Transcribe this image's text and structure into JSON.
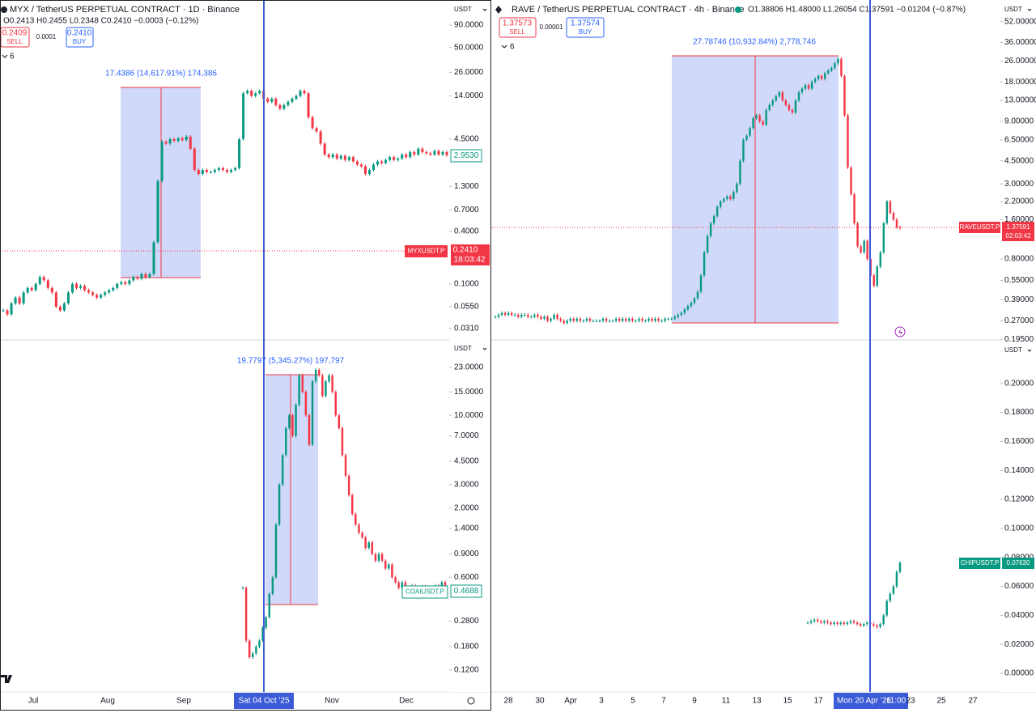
{
  "panes": [
    {
      "header": {
        "title": "MYX / TetherUS PERPETUAL CONTRACT · 1D · Binance",
        "ohlc": "O0.2413 H0.2455 L0.2348 C0.2410 −0.0003 (−0.12%)",
        "sell_price": "0.2409",
        "sell": "SELL",
        "spread": "0.0001",
        "buy_price": "0.2410",
        "buy": "BUY",
        "indicators": "6"
      },
      "currency": "USDT",
      "log": true,
      "ylim": [
        0.023,
        174
      ],
      "yticks": [
        {
          "value": 90,
          "label": "90.0000"
        },
        {
          "value": 50,
          "label": "50.0000"
        },
        {
          "value": 26,
          "label": "26.0000"
        },
        {
          "value": 14,
          "label": "14.0000"
        },
        {
          "value": 4.5,
          "label": "4.5000"
        },
        {
          "value": 1.3,
          "label": "1.3000"
        },
        {
          "value": 0.7,
          "label": "0.7000"
        },
        {
          "value": 0.4,
          "label": "0.4000"
        },
        {
          "value": 0.1,
          "label": "0.1000"
        },
        {
          "value": 0.055,
          "label": "0.0550"
        },
        {
          "value": 0.031,
          "label": "0.0310"
        }
      ],
      "measure": "17.4386 (14,617.91%) 174,386",
      "compare_price": "2.9530",
      "symbol_tag": "MYXUSDT.P",
      "tag_price": "0.2410",
      "countdown": "18:03:42",
      "closes": [
        0.05,
        0.045,
        0.06,
        0.07,
        0.06,
        0.08,
        0.09,
        0.085,
        0.1,
        0.12,
        0.11,
        0.09,
        0.08,
        0.055,
        0.05,
        0.06,
        0.08,
        0.1,
        0.09,
        0.095,
        0.085,
        0.08,
        0.075,
        0.07,
        0.075,
        0.08,
        0.085,
        0.09,
        0.1,
        0.105,
        0.1,
        0.11,
        0.12,
        0.115,
        0.13,
        0.12,
        0.13,
        0.3,
        1.5,
        4.2,
        4.0,
        4.5,
        4.3,
        4.6,
        4.4,
        4.8,
        3.5,
        2.0,
        1.8,
        2.0,
        1.9,
        1.9,
        2.0,
        2.1,
        2.0,
        1.9,
        2.0,
        2.1,
        4.5,
        15,
        16,
        14,
        15,
        16,
        13,
        12,
        13,
        11,
        10,
        11,
        12,
        13,
        14,
        16,
        15,
        8,
        6,
        5.5,
        4,
        3,
        2.8,
        3.0,
        2.7,
        2.9,
        2.6,
        2.8,
        2.5,
        2.3,
        2.2,
        1.8,
        2.0,
        2.3,
        2.5,
        2.4,
        2.6,
        2.8,
        2.6,
        2.7,
        3.0,
        2.8,
        3.2,
        3.0,
        3.5,
        3.2,
        3.1,
        3.0,
        3.3,
        3.0,
        3.2,
        2.95
      ]
    },
    {
      "currency": "USDT",
      "log": true,
      "ylim": [
        0.082,
        37
      ],
      "yticks": [
        {
          "value": 23,
          "label": "23.0000"
        },
        {
          "value": 15,
          "label": "15.0000"
        },
        {
          "value": 10,
          "label": "10.0000"
        },
        {
          "value": 7,
          "label": "7.0000"
        },
        {
          "value": 4.5,
          "label": "4.5000"
        },
        {
          "value": 3,
          "label": "3.0000"
        },
        {
          "value": 2,
          "label": "2.0000"
        },
        {
          "value": 1.4,
          "label": "1.4000"
        },
        {
          "value": 0.9,
          "label": "0.9000"
        },
        {
          "value": 0.6,
          "label": "0.6000"
        },
        {
          "value": 0.28,
          "label": "0.2800"
        },
        {
          "value": 0.18,
          "label": "0.1800"
        },
        {
          "value": 0.12,
          "label": "0.1200"
        }
      ],
      "measure": "19.7797 (5,345.27%) 197,797",
      "symbol_tag": "COAIUSDT.P",
      "tag_price": "0.4688",
      "closes": [
        0.5,
        0.2,
        0.15,
        0.16,
        0.18,
        0.2,
        0.25,
        0.3,
        0.45,
        0.6,
        1.5,
        3.0,
        5,
        8,
        10,
        7,
        12,
        20,
        15,
        10,
        6,
        18,
        22,
        20,
        14,
        18,
        20,
        15,
        10,
        8,
        5,
        3.5,
        2.5,
        1.8,
        1.5,
        1.3,
        1.2,
        1.0,
        1.1,
        0.9,
        0.8,
        0.9,
        0.8,
        0.7,
        0.75,
        0.6,
        0.55,
        0.5,
        0.55,
        0.5,
        0.48,
        0.52,
        0.5,
        0.5,
        0.51,
        0.5,
        0.49,
        0.5,
        0.52,
        0.5,
        0.55,
        0.47
      ]
    },
    {
      "header": {
        "title": "RAVE / TetherUS PERPETUAL CONTRACT · 4h · Binance",
        "ohlc": "O1.38806 H1.48000 L1.26054 C1.37591 −0.01204 (−0.87%)",
        "sell_price": "1.37573",
        "sell": "SELL",
        "spread": "0.00001",
        "buy_price": "1.37574",
        "buy": "BUY",
        "indicators": "6"
      },
      "currency": "USDT",
      "log": true,
      "ylim": [
        0.193,
        76
      ],
      "yticks": [
        {
          "value": 52,
          "label": "52.00000"
        },
        {
          "value": 36,
          "label": "36.00000"
        },
        {
          "value": 26,
          "label": "26.00000"
        },
        {
          "value": 18,
          "label": "18.00000"
        },
        {
          "value": 13,
          "label": "13.00000"
        },
        {
          "value": 9,
          "label": "9.00000"
        },
        {
          "value": 6.5,
          "label": "6.50000"
        },
        {
          "value": 4.5,
          "label": "4.50000"
        },
        {
          "value": 3,
          "label": "3.00000"
        },
        {
          "value": 2.2,
          "label": "2.20000"
        },
        {
          "value": 1.6,
          "label": "1.60000"
        },
        {
          "value": 0.8,
          "label": "0.80000"
        },
        {
          "value": 0.55,
          "label": "0.55000"
        },
        {
          "value": 0.39,
          "label": "0.39000"
        },
        {
          "value": 0.27,
          "label": "0.27000"
        },
        {
          "value": 0.195,
          "label": "0.19500"
        }
      ],
      "measure": "27.78746 (10,932.84%) 2,778,746",
      "symbol_tag": "RAVEUSDT.P",
      "tag_price": "1.37591",
      "countdown": "02:03:42",
      "closes": [
        0.29,
        0.3,
        0.31,
        0.3,
        0.31,
        0.3,
        0.3,
        0.29,
        0.3,
        0.3,
        0.29,
        0.29,
        0.3,
        0.29,
        0.28,
        0.29,
        0.27,
        0.28,
        0.3,
        0.28,
        0.27,
        0.26,
        0.27,
        0.28,
        0.27,
        0.28,
        0.27,
        0.27,
        0.28,
        0.27,
        0.27,
        0.27,
        0.27,
        0.28,
        0.27,
        0.27,
        0.27,
        0.28,
        0.27,
        0.28,
        0.27,
        0.28,
        0.27,
        0.27,
        0.28,
        0.27,
        0.27,
        0.28,
        0.27,
        0.28,
        0.27,
        0.27,
        0.28,
        0.28,
        0.28,
        0.29,
        0.3,
        0.31,
        0.33,
        0.35,
        0.37,
        0.4,
        0.45,
        0.6,
        0.9,
        1.2,
        1.5,
        1.7,
        2.0,
        2.2,
        2.3,
        2.4,
        2.3,
        2.6,
        3.0,
        4.5,
        6.5,
        7.0,
        8.0,
        9.5,
        10,
        9,
        8.5,
        11,
        12,
        13,
        14,
        15,
        13,
        12,
        11,
        10.5,
        13,
        15,
        16,
        17,
        16,
        18,
        19,
        20,
        19,
        21,
        22,
        23,
        25,
        27,
        20,
        10,
        4,
        2.5,
        1.5,
        1.0,
        0.9,
        1.1,
        0.8,
        0.6,
        0.5,
        0.7,
        0.9,
        1.5,
        2.2,
        1.8,
        1.6,
        1.4,
        1.376
      ]
    },
    {
      "currency": "USDT",
      "log": false,
      "ylim": [
        -0.0128,
        0.23
      ],
      "yticks": [
        {
          "value": 0.2,
          "label": "0.20000"
        },
        {
          "value": 0.18,
          "label": "0.18000"
        },
        {
          "value": 0.16,
          "label": "0.16000"
        },
        {
          "value": 0.14,
          "label": "0.14000"
        },
        {
          "value": 0.12,
          "label": "0.12000"
        },
        {
          "value": 0.1,
          "label": "0.10000"
        },
        {
          "value": 0.08,
          "label": "0.08000"
        },
        {
          "value": 0.06,
          "label": "0.06000"
        },
        {
          "value": 0.04,
          "label": "0.04000"
        },
        {
          "value": 0.02,
          "label": "0.02000"
        },
        {
          "value": 0,
          "label": "0.00000"
        }
      ],
      "symbol_tag": "CHIPUSDT.P",
      "tag_price": "0.07630",
      "closes": [
        0.035,
        0.036,
        0.037,
        0.036,
        0.035,
        0.036,
        0.035,
        0.034,
        0.035,
        0.034,
        0.035,
        0.034,
        0.035,
        0.036,
        0.035,
        0.034,
        0.033,
        0.034,
        0.035,
        0.034,
        0.033,
        0.032,
        0.034,
        0.04,
        0.05,
        0.055,
        0.06,
        0.07,
        0.0763
      ]
    }
  ],
  "time_axes": [
    {
      "labels": [
        "Jul",
        "Aug",
        "Sep",
        "Nov",
        "Dec"
      ],
      "crosshair": "Sat 04 Oct '25"
    },
    {
      "labels": [
        "28",
        "30",
        "Apr",
        "3",
        "5",
        "7",
        "9",
        "11",
        "13",
        "15",
        "17",
        "23",
        "25",
        "27"
      ],
      "crosshair": "Mon 20 Apr '26",
      "crosshair_time": "11:00"
    }
  ]
}
